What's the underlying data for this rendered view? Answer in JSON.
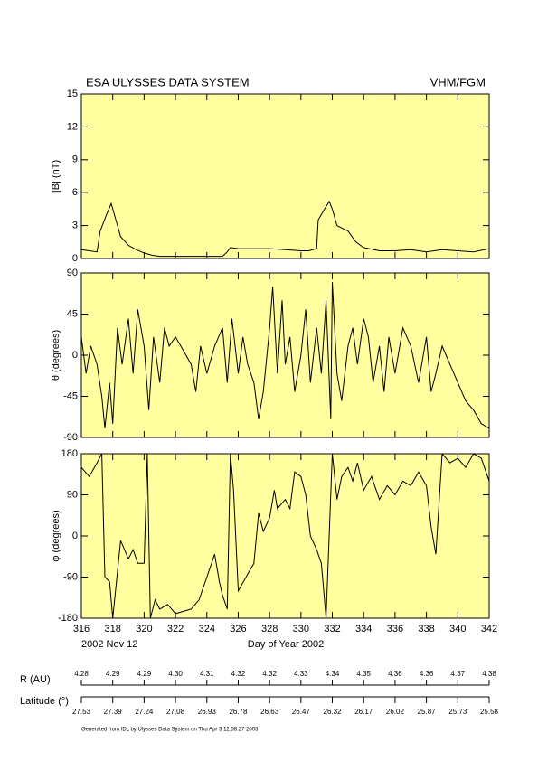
{
  "header": {
    "title": "ESA ULYSSES DATA SYSTEM",
    "instrument": "VHM/FGM",
    "start_date": "2002 Nov 12",
    "footer": "Generated from IDL by Ulysses Data System on Thu Apr  3 12:58:27 2003"
  },
  "orbit": {
    "r_label": "R (AU)",
    "r_values": [
      "4.28",
      "4.29",
      "4.29",
      "4.30",
      "4.31",
      "4.32",
      "4.32",
      "4.33",
      "4.34",
      "4.35",
      "4.36",
      "4.36",
      "4.37",
      "4.38"
    ],
    "lat_label": "Latitude (°)",
    "lat_values": [
      "27.53",
      "27.39",
      "27.24",
      "27.08",
      "26.93",
      "26.78",
      "26.63",
      "26.47",
      "26.32",
      "26.17",
      "26.02",
      "25.87",
      "25.73",
      "25.58"
    ]
  },
  "chart_data": [
    {
      "type": "line",
      "ylabel": "|B| (nT)",
      "color": "#000000",
      "xlim": [
        316,
        342
      ],
      "ylim": [
        0,
        15
      ],
      "yticks": [
        0,
        3,
        6,
        9,
        12,
        15
      ],
      "x": [
        316,
        316.5,
        317,
        317.2,
        317.6,
        317.9,
        318.2,
        318.5,
        319,
        319.5,
        320,
        320.5,
        321,
        322,
        323,
        324,
        325,
        325.3,
        325.5,
        326,
        327,
        328,
        329,
        330,
        330.5,
        331,
        331.1,
        331.5,
        331.8,
        332,
        332.3,
        333,
        333.5,
        334,
        335,
        336,
        337,
        338,
        339,
        340,
        341,
        342
      ],
      "values": [
        0.8,
        0.7,
        0.6,
        2.5,
        4,
        5,
        3.5,
        2,
        1.2,
        0.8,
        0.5,
        0.3,
        0.2,
        0.2,
        0.2,
        0.2,
        0.2,
        0.6,
        1.0,
        0.9,
        0.9,
        0.9,
        0.8,
        0.7,
        0.7,
        0.9,
        3.5,
        4.5,
        5.2,
        4.5,
        3,
        2.5,
        1.5,
        1,
        0.7,
        0.7,
        0.8,
        0.6,
        0.8,
        0.7,
        0.6,
        0.9
      ]
    },
    {
      "type": "line",
      "ylabel": "θ (degrees)",
      "color": "#000000",
      "xlim": [
        316,
        342
      ],
      "ylim": [
        -90,
        90
      ],
      "yticks": [
        -90,
        -45,
        0,
        45,
        90
      ],
      "x": [
        316,
        316.3,
        316.6,
        317,
        317.3,
        317.5,
        317.8,
        318,
        318.3,
        318.6,
        319,
        319.3,
        319.6,
        320,
        320.3,
        320.6,
        321,
        321.3,
        321.6,
        322,
        322.5,
        323,
        323.3,
        323.6,
        324,
        324.5,
        325,
        325.3,
        325.6,
        326,
        326.3,
        326.6,
        327,
        327.3,
        327.6,
        328,
        328.2,
        328.5,
        328.8,
        329,
        329.3,
        329.6,
        330,
        330.3,
        330.6,
        331,
        331.3,
        331.6,
        331.9,
        332,
        332.3,
        332.6,
        333,
        333.3,
        333.6,
        334,
        334.3,
        334.6,
        335,
        335.3,
        335.6,
        336,
        336.5,
        337,
        337.5,
        338,
        338.3,
        338.6,
        339,
        339.5,
        340,
        340.5,
        341,
        341.5,
        342
      ],
      "values": [
        20,
        -20,
        10,
        -10,
        -45,
        -80,
        -30,
        -75,
        30,
        -10,
        40,
        -20,
        50,
        10,
        -60,
        20,
        -30,
        30,
        10,
        20,
        5,
        -10,
        -40,
        10,
        -20,
        10,
        30,
        -30,
        40,
        -20,
        20,
        -10,
        -30,
        -70,
        -40,
        30,
        75,
        -20,
        60,
        -10,
        20,
        -40,
        0,
        50,
        -30,
        30,
        -20,
        60,
        -70,
        80,
        -20,
        -50,
        10,
        30,
        -10,
        40,
        20,
        -30,
        10,
        -40,
        20,
        -20,
        30,
        10,
        -30,
        20,
        -40,
        -20,
        10,
        -10,
        -30,
        -50,
        -60,
        -75,
        -80
      ]
    },
    {
      "type": "line",
      "ylabel": "φ (degrees)",
      "xlabel": "Day of Year 2002",
      "color": "#000000",
      "xlim": [
        316,
        342
      ],
      "ylim": [
        -180,
        180
      ],
      "yticks": [
        -180,
        -90,
        0,
        90,
        180
      ],
      "xticks": [
        316,
        318,
        320,
        322,
        324,
        326,
        328,
        330,
        332,
        334,
        336,
        338,
        340,
        342
      ],
      "x": [
        316,
        316.5,
        317,
        317.3,
        317.5,
        317.8,
        318,
        318.5,
        319,
        319.3,
        319.6,
        320,
        320.2,
        320.4,
        320.7,
        321,
        321.5,
        322,
        323,
        323.5,
        324,
        324.3,
        324.5,
        324.8,
        325,
        325.3,
        325.5,
        325.7,
        326,
        326.5,
        327,
        327.3,
        327.6,
        328,
        328.3,
        328.5,
        329,
        329.3,
        329.6,
        330,
        330.3,
        330.6,
        331,
        331.3,
        331.6,
        332,
        332.3,
        332.6,
        333,
        333.3,
        333.6,
        334,
        334.5,
        335,
        335.5,
        336,
        336.5,
        337,
        337.5,
        338,
        338.3,
        338.6,
        339,
        339.5,
        340,
        340.5,
        341,
        341.5,
        342
      ],
      "values": [
        150,
        130,
        160,
        180,
        -90,
        -100,
        -180,
        -10,
        -50,
        -30,
        -60,
        -60,
        180,
        -180,
        -140,
        -160,
        -150,
        -170,
        -160,
        -140,
        -90,
        -60,
        -40,
        -100,
        -130,
        -160,
        180,
        100,
        -120,
        -90,
        -60,
        50,
        10,
        40,
        100,
        60,
        80,
        60,
        140,
        130,
        90,
        0,
        -30,
        -60,
        -180,
        180,
        80,
        130,
        150,
        120,
        160,
        100,
        130,
        80,
        110,
        90,
        120,
        110,
        140,
        110,
        20,
        -40,
        180,
        160,
        170,
        150,
        180,
        170,
        120
      ]
    }
  ]
}
